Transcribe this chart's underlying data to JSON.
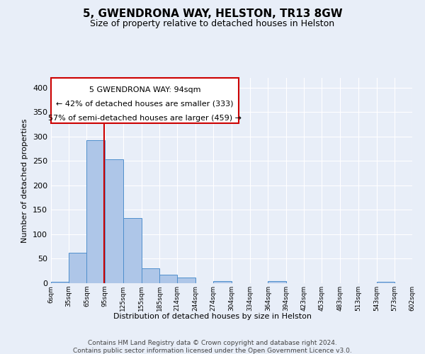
{
  "title_line1": "5, GWENDRONA WAY, HELSTON, TR13 8GW",
  "title_line2": "Size of property relative to detached houses in Helston",
  "xlabel": "Distribution of detached houses by size in Helston",
  "ylabel": "Number of detached properties",
  "footer_line1": "Contains HM Land Registry data © Crown copyright and database right 2024.",
  "footer_line2": "Contains public sector information licensed under the Open Government Licence v3.0.",
  "annotation_line1": "5 GWENDRONA WAY: 94sqm",
  "annotation_line2": "← 42% of detached houses are smaller (333)",
  "annotation_line3": "57% of semi-detached houses are larger (459) →",
  "bar_edges": [
    6,
    35,
    65,
    95,
    125,
    155,
    185,
    214,
    244,
    274,
    304,
    334,
    364,
    394,
    423,
    453,
    483,
    513,
    543,
    573,
    602
  ],
  "bar_heights": [
    3,
    62,
    293,
    254,
    133,
    31,
    17,
    11,
    0,
    4,
    0,
    0,
    4,
    0,
    0,
    0,
    0,
    0,
    3,
    0,
    0
  ],
  "bar_color": "#aec6e8",
  "bar_edge_color": "#4f8fcc",
  "background_color": "#e8eef8",
  "grid_color": "#ffffff",
  "redline_x": 94,
  "ylim": [
    0,
    420
  ],
  "yticks": [
    0,
    50,
    100,
    150,
    200,
    250,
    300,
    350,
    400
  ],
  "annotation_box_color": "#ffffff",
  "annotation_box_edge": "#cc0000",
  "redline_color": "#cc0000",
  "title_fontsize": 11,
  "subtitle_fontsize": 9,
  "ylabel_fontsize": 8,
  "xlabel_fontsize": 8,
  "tick_fontsize": 8,
  "xtick_fontsize": 6.5,
  "annotation_fontsize": 8,
  "footer_fontsize": 6.5
}
